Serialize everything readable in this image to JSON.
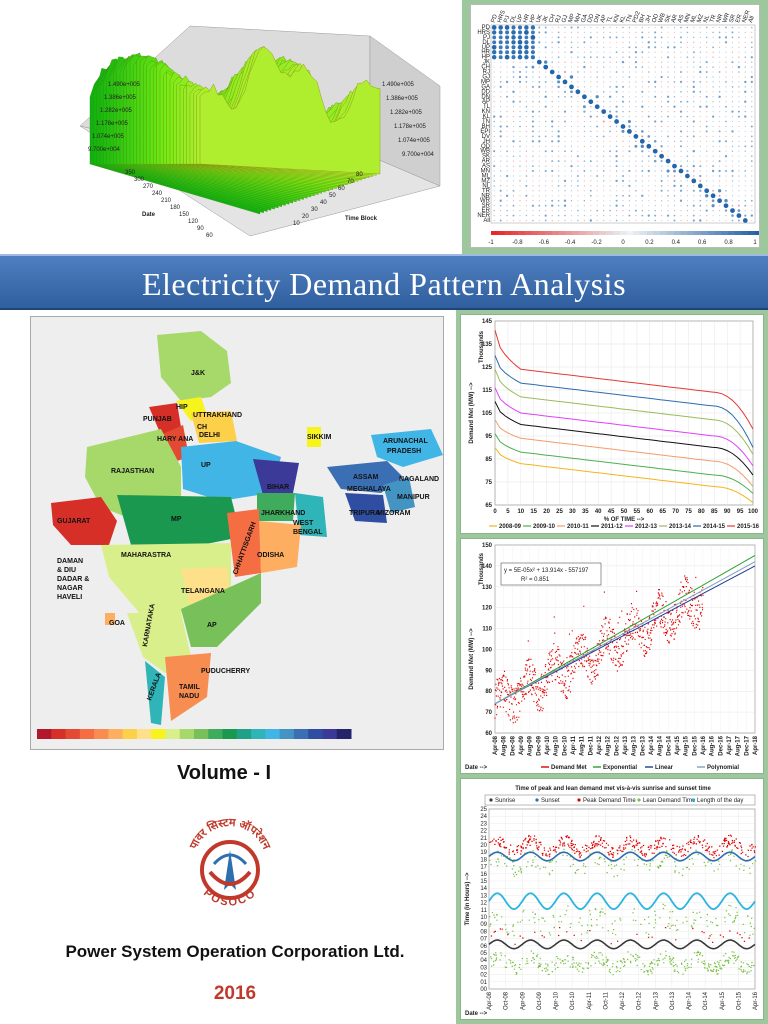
{
  "title": "Electricity Demand Pattern Analysis",
  "volume": "Volume - I",
  "organization": "Power System Operation Corporation Ltd.",
  "year": "2016",
  "logo": {
    "hindi_text": "पावर सिस्टम ऑपरेशन",
    "abbr": "POSOCO",
    "colors": {
      "primary": "#c0392b",
      "accent": "#2e6fb0"
    }
  },
  "surface_plot": {
    "z_ticks": [
      "1.490e+005",
      "1.386e+005",
      "1.282e+005",
      "1.178e+005",
      "1.074e+005",
      "9.700e+004"
    ],
    "z_ticks_right": [
      "1.490e+005",
      "1.386e+005",
      "1.282e+005",
      "1.178e+005",
      "1.074e+005",
      "9.700e+004"
    ],
    "date_ticks": [
      "350",
      "300",
      "270",
      "240",
      "210",
      "180",
      "150",
      "120",
      "90",
      "60"
    ],
    "time_ticks": [
      "80",
      "70",
      "60",
      "50",
      "40",
      "30",
      "20",
      "10"
    ],
    "date_label": "Date",
    "time_label": "Time Block"
  },
  "correlation": {
    "states": [
      "PD",
      "HRS",
      "PJ",
      "DL",
      "UP",
      "HR",
      "HP",
      "UK",
      "JK",
      "CH",
      "RJ",
      "GJ",
      "MP",
      "MH",
      "GA",
      "DD",
      "DN",
      "AP",
      "TL",
      "KN",
      "KL",
      "TN",
      "PD2",
      "BH",
      "JH",
      "OD",
      "WB",
      "SK",
      "AR",
      "AS",
      "MN",
      "ML",
      "MZ",
      "NL",
      "TR",
      "NR",
      "WR",
      "SR",
      "ER",
      "NER",
      "All"
    ],
    "row_labels": [
      "PD",
      "HRS",
      "PJ",
      "DL",
      "UP",
      "HR",
      "HP",
      "JK",
      "CH",
      "RJ",
      "GJ",
      "MP",
      "GA",
      "DD",
      "DN",
      "AP",
      "TL",
      "KN",
      "KL",
      "TN",
      "BH",
      "EPI",
      "DV",
      "JH",
      "OD",
      "WB",
      "SK",
      "AR",
      "AS",
      "MN",
      "ML",
      "MZ",
      "NL",
      "TR",
      "NR",
      "WR",
      "SR",
      "ER",
      "NER",
      "All"
    ],
    "colorbar_ticks": [
      "-1",
      "-0.8",
      "-0.6",
      "-0.4",
      "-0.2",
      "0",
      "0.2",
      "0.4",
      "0.6",
      "0.8",
      "1"
    ]
  },
  "map": {
    "states": [
      "J&K",
      "HIP",
      "PUNJAB",
      "HARY ANA",
      "CH",
      "DELHI",
      "UTTRAKHAND",
      "RAJASTHAN",
      "UP",
      "SIKKIM",
      "ARUNACHAL PRADESH",
      "ASSAM",
      "MEGHALAYA",
      "NAGALAND",
      "MANIPUR",
      "TRIPURA",
      "MIZORAM",
      "BIHAR",
      "JHARKHAND",
      "WEST BENGAL",
      "GUJARAT",
      "MP",
      "CHHATTISGARH",
      "ODISHA",
      "DAMAN & DIU",
      "DADAR & NAGAR HAVELI",
      "MAHARASTRA",
      "TELANGANA",
      "GOA",
      "KARNATAKA",
      "AP",
      "PUDUCHERRY",
      "KERALA",
      "TAMIL NADU"
    ],
    "colorbar": [
      "#b2182b",
      "#d62f27",
      "#e34a33",
      "#f46d43",
      "#f88d52",
      "#fdae61",
      "#fdd049",
      "#fee08b",
      "#f7f31d",
      "#d9ef8b",
      "#a6d96a",
      "#77c05a",
      "#3eac5c",
      "#1a9850",
      "#1fa187",
      "#2fb5b8",
      "#41b6e6",
      "#4393c3",
      "#3a6fb4",
      "#2f4ea1",
      "#3b3a98",
      "#24246b"
    ]
  },
  "duration_chart": {
    "type": "line",
    "ylabel": "Demand Met (MW) -->",
    "yunit": "Thousands",
    "xlabel": "% OF TIME -->",
    "ylim": [
      65,
      145
    ],
    "xlim": [
      0,
      100
    ],
    "y_ticks": [
      "145",
      "135",
      "125",
      "115",
      "105",
      "95",
      "85",
      "75",
      "65"
    ],
    "x_ticks": [
      "0",
      "5",
      "10",
      "15",
      "20",
      "25",
      "30",
      "35",
      "40",
      "45",
      "50",
      "55",
      "60",
      "65",
      "70",
      "75",
      "80",
      "85",
      "90",
      "95",
      "100"
    ],
    "series": [
      {
        "name": "2008-09",
        "color": "#f2b51e",
        "start": 90,
        "mid": 78,
        "end": 66
      },
      {
        "name": "2009-10",
        "color": "#4caf50",
        "start": 96,
        "mid": 83,
        "end": 70
      },
      {
        "name": "2010-11",
        "color": "#f39c6b",
        "start": 102,
        "mid": 89,
        "end": 73
      },
      {
        "name": "2011-12",
        "color": "#111111",
        "start": 110,
        "mid": 95,
        "end": 78
      },
      {
        "name": "2012-13",
        "color": "#e040fb",
        "start": 116,
        "mid": 100,
        "end": 82
      },
      {
        "name": "2013-14",
        "color": "#9bbb59",
        "start": 124,
        "mid": 107,
        "end": 87
      },
      {
        "name": "2014-15",
        "color": "#2b6cb0",
        "start": 130,
        "mid": 113,
        "end": 90
      },
      {
        "name": "2015-16",
        "color": "#e53935",
        "start": 141,
        "mid": 119,
        "end": 98
      }
    ]
  },
  "trend_chart": {
    "type": "scatter",
    "ylabel": "Demand Met (MW) -->",
    "yunit": "Thousands",
    "xlabel": "Date -->",
    "ylim": [
      60,
      150
    ],
    "y_ticks": [
      "150",
      "140",
      "130",
      "120",
      "110",
      "100",
      "90",
      "80",
      "70",
      "60"
    ],
    "x_ticks": [
      "Apr-08",
      "Aug-08",
      "Dec-08",
      "Apr-09",
      "Aug-09",
      "Dec-09",
      "Apr-10",
      "Aug-10",
      "Dec-10",
      "Apr-11",
      "Aug-11",
      "Dec-11",
      "Apr-12",
      "Aug-12",
      "Dec-12",
      "Apr-13",
      "Aug-13",
      "Dec-13",
      "Apr-14",
      "Aug-14",
      "Dec-14",
      "Apr-15",
      "Aug-15",
      "Dec-15",
      "Apr-16",
      "Aug-16",
      "Dec-16",
      "Apr-17",
      "Aug-17",
      "Dec-17",
      "Apr-18"
    ],
    "equation": "y = 5E-05x² + 13.914x - 557197",
    "r2": "R² = 0.851",
    "legend": [
      "Demand Met",
      "Exponential",
      "Linear",
      "Polynomial"
    ],
    "legend_colors": [
      "#e00000",
      "#2ca02c",
      "#1f3a93",
      "#7f9fbf"
    ],
    "start": 74,
    "end_data": 125,
    "end_projection": 145
  },
  "timing_chart": {
    "type": "scatter",
    "title": "Time of peak and lean demand met vis-à-vis sunrise and sunset time",
    "ylabel": "Time (in Hours) -->",
    "xlabel": "Date -->",
    "legend": [
      "Sunrise",
      "Sunset",
      "Peak Demand Time",
      "Lean Demand Time",
      "Length of the day"
    ],
    "legend_colors": [
      "#3a3a3a",
      "#2f6fb0",
      "#e00000",
      "#7ac143",
      "#2bb5e0"
    ],
    "y_ticks": [
      "25",
      "24",
      "23",
      "22",
      "21",
      "20",
      "19",
      "18",
      "17",
      "16",
      "15",
      "14",
      "13",
      "12",
      "11",
      "10",
      "09",
      "08",
      "07",
      "06",
      "05",
      "04",
      "03",
      "02",
      "01",
      "00"
    ],
    "x_ticks": [
      "Apr-08",
      "Oct-08",
      "Apr-09",
      "Oct-09",
      "Apr-10",
      "Oct-10",
      "Apr-11",
      "Oct-11",
      "Apr-12",
      "Oct-12",
      "Apr-13",
      "Oct-13",
      "Apr-14",
      "Oct-14",
      "Apr-15",
      "Oct-15",
      "Apr-16"
    ]
  }
}
